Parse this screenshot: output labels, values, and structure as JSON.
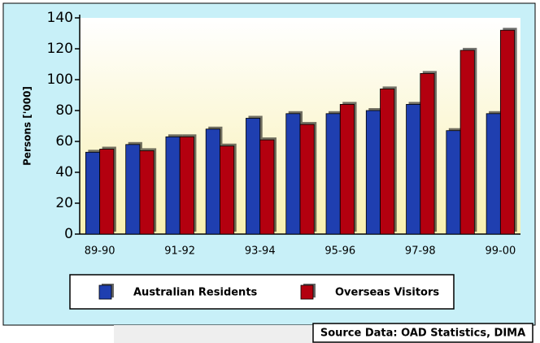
{
  "chart_data": {
    "type": "bar",
    "y_label": "Persons ['000]",
    "source": "Source Data: OAD Statistics, DIMA",
    "categories": [
      "89-90",
      null,
      "91-92",
      null,
      "93-94",
      null,
      "95-96",
      null,
      "97-98",
      null,
      "99-00"
    ],
    "series": [
      {
        "name": "Australian Residents",
        "color": "#1f3fb0",
        "values": [
          53,
          58,
          63,
          68,
          75,
          78,
          78,
          80,
          84,
          67,
          78
        ]
      },
      {
        "name": "Overseas Visitors",
        "color": "#b3000f",
        "values": [
          55,
          54,
          63,
          57,
          61,
          71,
          84,
          94,
          104,
          119,
          132
        ]
      }
    ],
    "ylim": [
      0,
      140
    ],
    "yticks": [
      0,
      20,
      40,
      60,
      80,
      100,
      120,
      140
    ]
  }
}
